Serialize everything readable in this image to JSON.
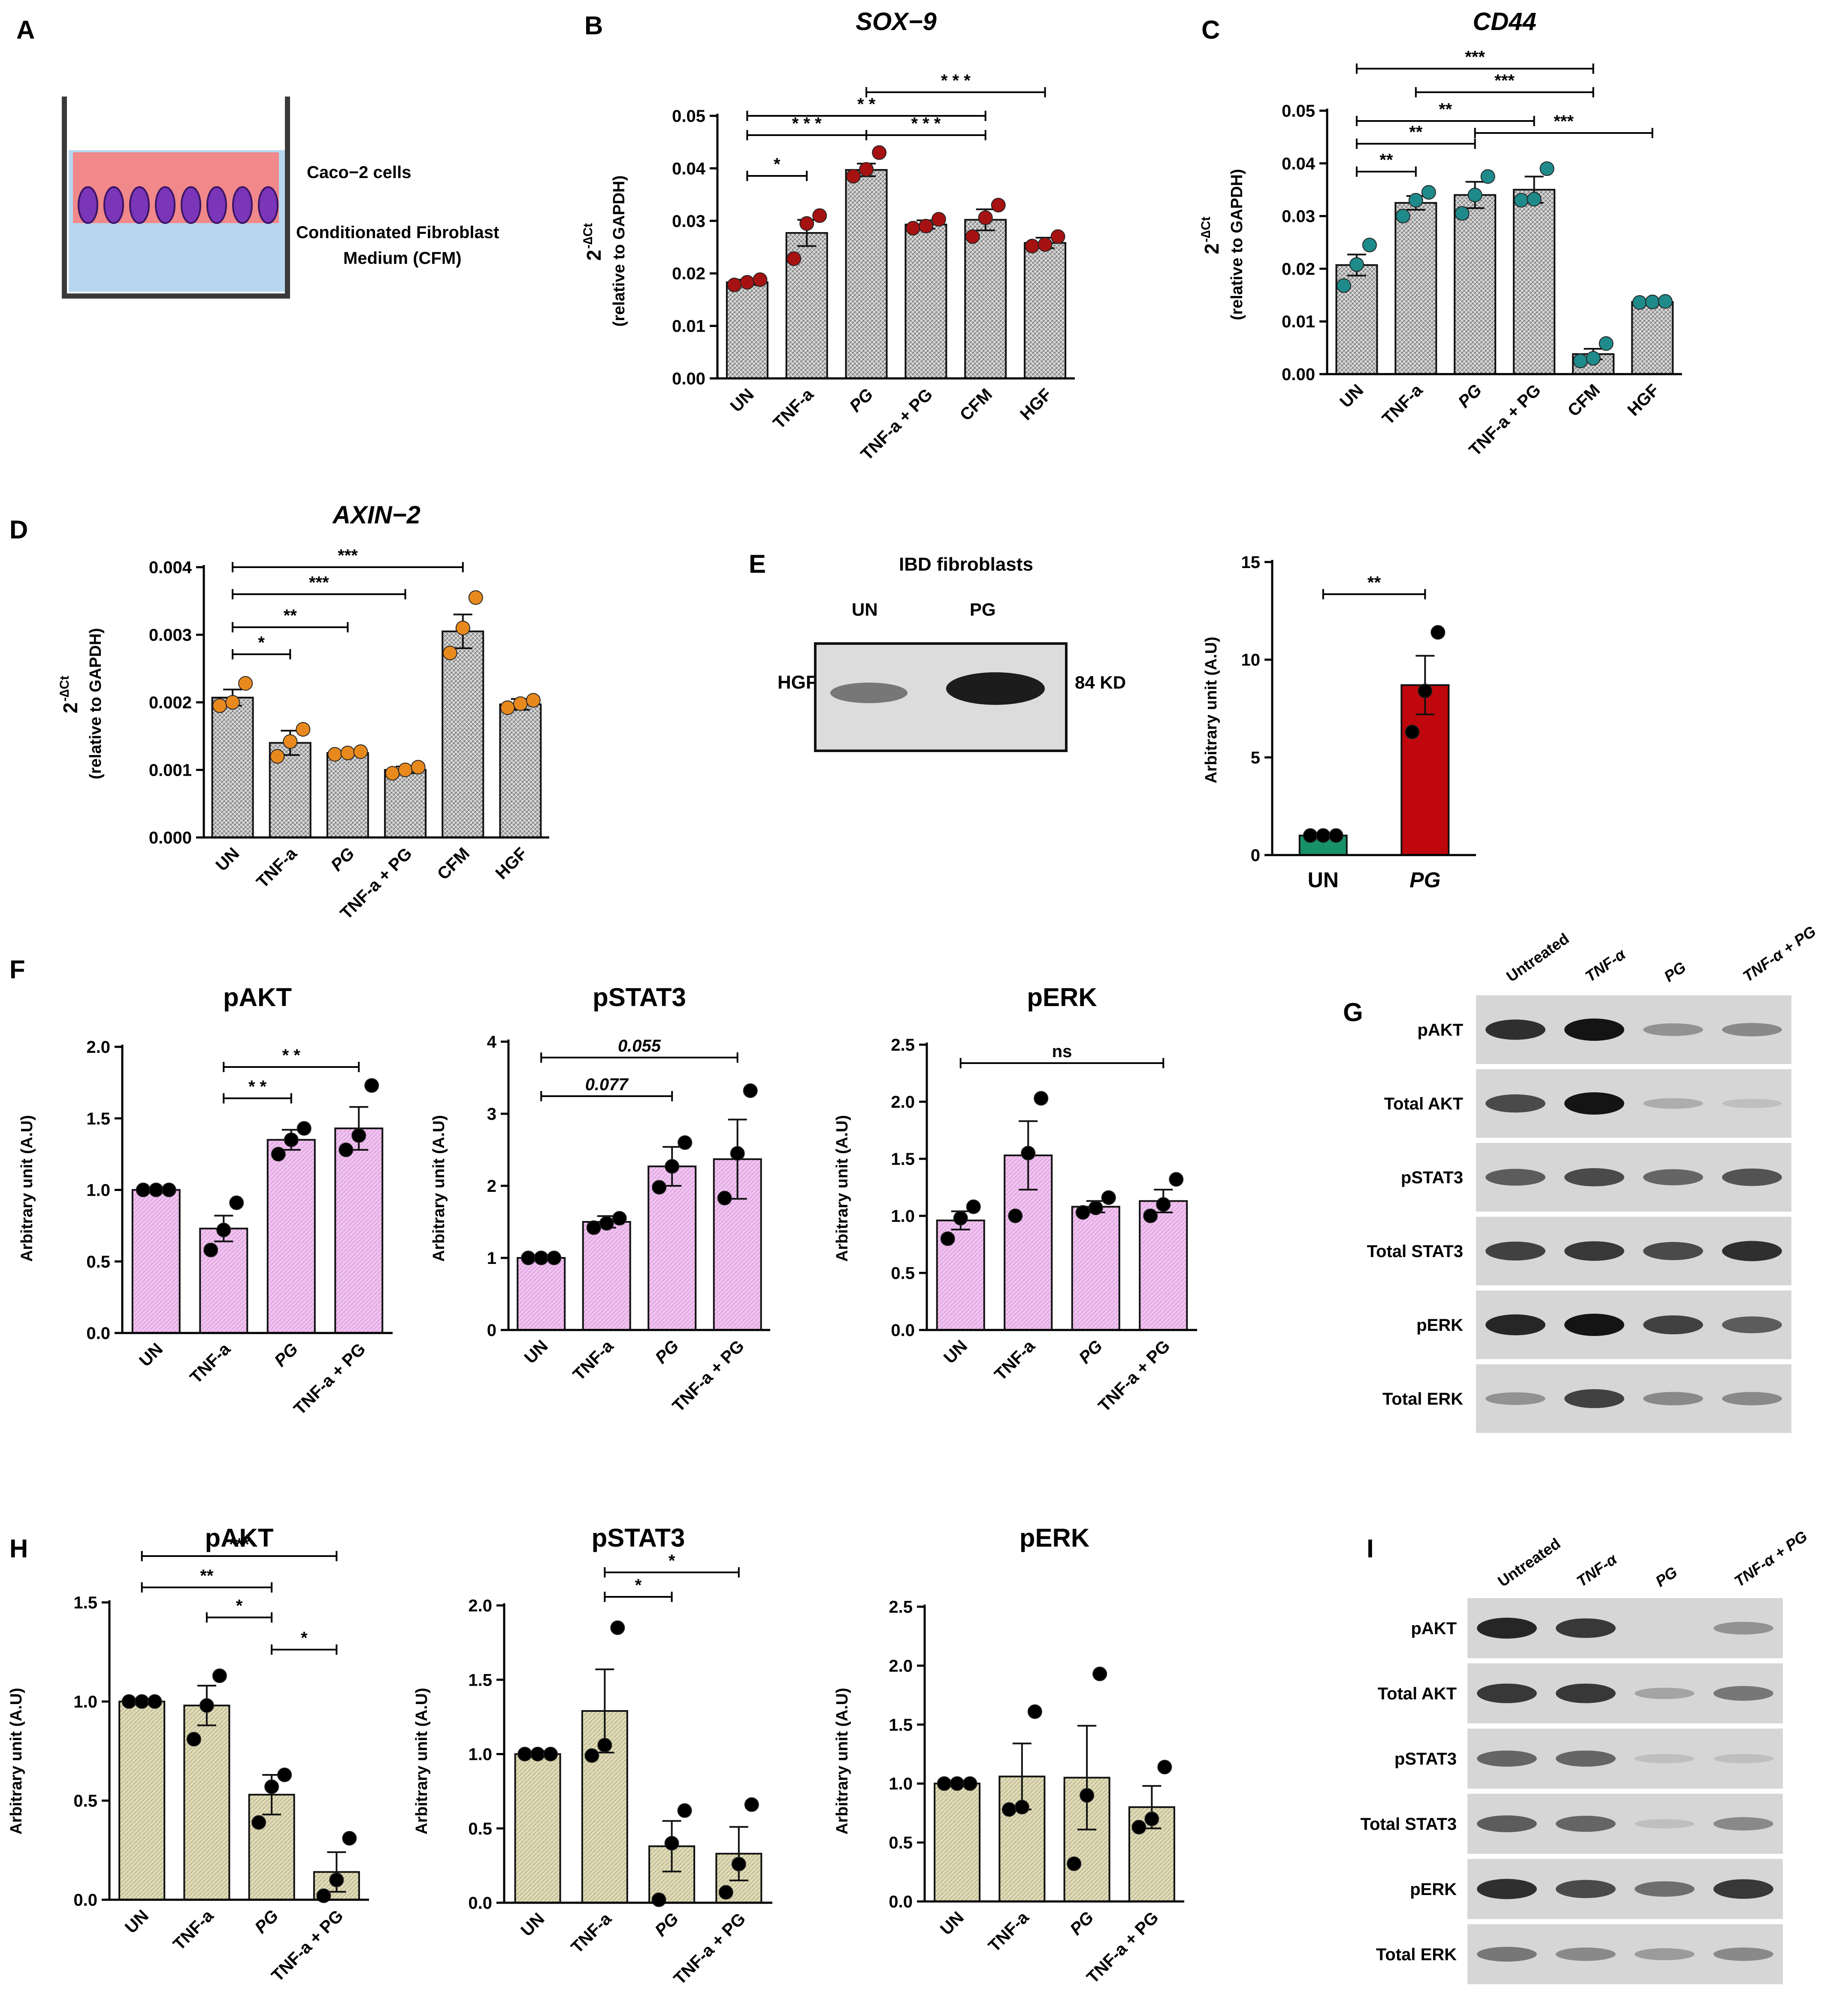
{
  "panel_labels": {
    "A": "A",
    "B": "B",
    "C": "C",
    "D": "D",
    "E": "E",
    "F": "F",
    "G": "G",
    "H": "H",
    "I": "I"
  },
  "panelA": {
    "cells_label": "Caco−2 cells",
    "medium_label_1": "Conditionated Fibroblast",
    "medium_label_2": "Medium  (CFM)"
  },
  "panelE": {
    "blot": {
      "title": "IBD  fibroblasts",
      "lanes": [
        "UN",
        "PG"
      ],
      "row": "HGF",
      "size": "84 KD"
    }
  },
  "chart_data": [
    {
      "id": "B",
      "type": "bar",
      "title": "SOX−9",
      "ylabel_main": "2",
      "ylabel_sup": "-∆Ct",
      "ylabel_sub": "(relative to GAPDH)",
      "categories": [
        "UN",
        "TNF-a",
        "PG",
        "TNF-a + PG",
        "CFM",
        "HGF"
      ],
      "values": [
        0.0183,
        0.0277,
        0.0397,
        0.0293,
        0.0302,
        0.0258
      ],
      "errors": [
        0.0005,
        0.0025,
        0.0012,
        0.0008,
        0.002,
        0.001
      ],
      "points": [
        [
          0.0178,
          0.0183,
          0.0188
        ],
        [
          0.0228,
          0.0295,
          0.031
        ],
        [
          0.0385,
          0.0398,
          0.043
        ],
        [
          0.0286,
          0.029,
          0.0303
        ],
        [
          0.027,
          0.0306,
          0.033
        ],
        [
          0.0252,
          0.0255,
          0.027
        ]
      ],
      "ylim": [
        0,
        0.05
      ],
      "yticks": [
        "0.00",
        "0.01",
        "0.02",
        "0.03",
        "0.04",
        "0.05"
      ],
      "fill": "gray",
      "dot": "#a61212",
      "sig": [
        {
          "from": 0,
          "to": 1,
          "label": "*"
        },
        {
          "from": 0,
          "to": 2,
          "label": "* * *"
        },
        {
          "from": 0,
          "to": 4,
          "label": "* *"
        },
        {
          "from": 2,
          "to": 4,
          "label": "* * *"
        },
        {
          "from": 2,
          "to": 5,
          "label": "* * *"
        }
      ]
    },
    {
      "id": "C",
      "type": "bar",
      "title": "CD44",
      "ylabel_main": "2",
      "ylabel_sup": "-∆Ct",
      "ylabel_sub": "(relative to GAPDH)",
      "categories": [
        "UN",
        "TNF-a",
        "PG",
        "TNF-a + PG",
        "CFM",
        "HGF"
      ],
      "values": [
        0.0207,
        0.0325,
        0.034,
        0.035,
        0.0038,
        0.0137
      ],
      "errors": [
        0.002,
        0.0013,
        0.0025,
        0.0025,
        0.001,
        0.0003
      ],
      "points": [
        [
          0.0168,
          0.0208,
          0.0245
        ],
        [
          0.03,
          0.033,
          0.0345
        ],
        [
          0.0305,
          0.034,
          0.0375
        ],
        [
          0.033,
          0.0332,
          0.039
        ],
        [
          0.0025,
          0.003,
          0.0058
        ],
        [
          0.0136,
          0.0137,
          0.0138
        ]
      ],
      "ylim": [
        0,
        0.05
      ],
      "yticks": [
        "0.00",
        "0.01",
        "0.02",
        "0.03",
        "0.04",
        "0.05"
      ],
      "fill": "gray",
      "dot": "#1f8a8a",
      "sig": [
        {
          "from": 0,
          "to": 1,
          "label": "**"
        },
        {
          "from": 0,
          "to": 2,
          "label": "**"
        },
        {
          "from": 0,
          "to": 3,
          "label": "**"
        },
        {
          "from": 2,
          "to": 5,
          "label": "***"
        },
        {
          "from": 1,
          "to": 4,
          "label": "***"
        },
        {
          "from": 0,
          "to": 4,
          "label": "***"
        }
      ]
    },
    {
      "id": "D",
      "type": "bar",
      "title": "AXIN−2",
      "ylabel_main": "2",
      "ylabel_sup": "-∆Ct",
      "ylabel_sub": "(relative to GAPDH)",
      "categories": [
        "UN",
        "TNF-a",
        "PG",
        "TNF-a + PG",
        "CFM",
        "HGF"
      ],
      "values": [
        0.00207,
        0.0014,
        0.00125,
        0.001,
        0.00305,
        0.00197
      ],
      "errors": [
        0.00012,
        0.00018,
        3e-05,
        5e-05,
        0.00025,
        8e-05
      ],
      "points": [
        [
          0.00195,
          0.002,
          0.00228
        ],
        [
          0.0012,
          0.00142,
          0.0016
        ],
        [
          0.00123,
          0.00125,
          0.00127
        ],
        [
          0.00095,
          0.001,
          0.00104
        ],
        [
          0.00273,
          0.0031,
          0.00355
        ],
        [
          0.00192,
          0.00198,
          0.00203
        ]
      ],
      "ylim": [
        0,
        0.004
      ],
      "yticks": [
        "0.000",
        "0.001",
        "0.002",
        "0.003",
        "0.004"
      ],
      "fill": "gray",
      "dot": "#e8891e",
      "sig": [
        {
          "from": 0,
          "to": 1,
          "label": "*"
        },
        {
          "from": 0,
          "to": 2,
          "label": "**"
        },
        {
          "from": 0,
          "to": 3,
          "label": "***"
        },
        {
          "from": 0,
          "to": 4,
          "label": "***"
        }
      ]
    },
    {
      "id": "E",
      "type": "bar",
      "title": "",
      "ylabel": "Arbitrary unit (A.U)",
      "categories": [
        "UN",
        "PG"
      ],
      "values": [
        1.0,
        8.7
      ],
      "errors": [
        0,
        1.5
      ],
      "points": [
        [
          1.0,
          1.0,
          1.0
        ],
        [
          6.3,
          8.4,
          11.4
        ]
      ],
      "ylim": [
        0,
        15
      ],
      "yticks": [
        "0",
        "5",
        "10",
        "15"
      ],
      "fills": [
        "#179267",
        "#c0070d"
      ],
      "dot": "#000000",
      "sig": [
        {
          "from": 0,
          "to": 1,
          "label": "**"
        }
      ]
    },
    {
      "id": "F1",
      "type": "bar",
      "title": "pAKT",
      "ylabel": "Arbitrary unit (A.U)",
      "categories": [
        "UN",
        "TNF-a",
        "PG",
        "TNF-a + PG"
      ],
      "values": [
        1.0,
        0.73,
        1.35,
        1.43
      ],
      "errors": [
        0,
        0.09,
        0.07,
        0.15
      ],
      "points": [
        [
          1.0,
          1.0,
          1.0
        ],
        [
          0.58,
          0.72,
          0.91
        ],
        [
          1.25,
          1.35,
          1.43
        ],
        [
          1.28,
          1.38,
          1.73
        ]
      ],
      "ylim": [
        0,
        2.0
      ],
      "yticks": [
        "0.0",
        "0.5",
        "1.0",
        "1.5",
        "2.0"
      ],
      "fill": "pink",
      "dot": "#000000",
      "sig": [
        {
          "from": 1,
          "to": 2,
          "label": "* *"
        },
        {
          "from": 1,
          "to": 3,
          "label": "* *"
        }
      ]
    },
    {
      "id": "F2",
      "type": "bar",
      "title": "pSTAT3",
      "ylabel": "Arbitrary unit (A.U)",
      "categories": [
        "UN",
        "TNF-a",
        "PG",
        "TNF-a + PG"
      ],
      "values": [
        1.0,
        1.5,
        2.27,
        2.37
      ],
      "errors": [
        0,
        0.08,
        0.27,
        0.55
      ],
      "points": [
        [
          1.0,
          1.0,
          1.0
        ],
        [
          1.42,
          1.48,
          1.55
        ],
        [
          1.98,
          2.27,
          2.6
        ],
        [
          1.83,
          2.45,
          3.32
        ]
      ],
      "ylim": [
        0,
        4
      ],
      "yticks": [
        "0",
        "1",
        "2",
        "3",
        "4"
      ],
      "fill": "pink",
      "dot": "#000000",
      "sig": [
        {
          "from": 0,
          "to": 2,
          "label": "0.077",
          "italic": true
        },
        {
          "from": 0,
          "to": 3,
          "label": "0.055",
          "italic": true
        }
      ]
    },
    {
      "id": "F3",
      "type": "bar",
      "title": "pERK",
      "ylabel": "Arbitrary unit (A.U)",
      "categories": [
        "UN",
        "TNF-a",
        "PG",
        "TNF-a + PG"
      ],
      "values": [
        0.96,
        1.53,
        1.08,
        1.13
      ],
      "errors": [
        0.08,
        0.3,
        0.05,
        0.1
      ],
      "points": [
        [
          0.8,
          0.98,
          1.08
        ],
        [
          1.0,
          1.55,
          2.03
        ],
        [
          1.03,
          1.07,
          1.16
        ],
        [
          1.0,
          1.1,
          1.32
        ]
      ],
      "ylim": [
        0,
        2.5
      ],
      "yticks": [
        "0.0",
        "0.5",
        "1.0",
        "1.5",
        "2.0",
        "2.5"
      ],
      "fill": "pink",
      "dot": "#000000",
      "sig": [
        {
          "from": 0,
          "to": 3,
          "label": "ns"
        }
      ]
    },
    {
      "id": "H1",
      "type": "bar",
      "title": "pAKT",
      "ylabel": "Arbitrary unit (A.U)",
      "categories": [
        "UN",
        "TNF-a",
        "PG",
        "TNF-a + PG"
      ],
      "values": [
        1.0,
        0.98,
        0.53,
        0.14
      ],
      "errors": [
        0,
        0.1,
        0.1,
        0.1
      ],
      "points": [
        [
          1.0,
          1.0,
          1.0
        ],
        [
          0.81,
          0.98,
          1.13
        ],
        [
          0.39,
          0.57,
          0.63
        ],
        [
          0.02,
          0.1,
          0.31
        ]
      ],
      "ylim": [
        0,
        1.5
      ],
      "yticks": [
        "0.0",
        "0.5",
        "1.0",
        "1.5"
      ],
      "fill": "olive",
      "dot": "#000000",
      "sig": [
        {
          "from": 0,
          "to": 2,
          "label": "**"
        },
        {
          "from": 0,
          "to": 3,
          "label": "***"
        },
        {
          "from": 1,
          "to": 2,
          "label": "*"
        },
        {
          "from": 2,
          "to": 3,
          "label": "*"
        }
      ]
    },
    {
      "id": "H2",
      "type": "bar",
      "title": "pSTAT3",
      "ylabel": "Arbitrary unit (A.U)",
      "categories": [
        "UN",
        "TNF-a",
        "PG",
        "TNF-a + PG"
      ],
      "values": [
        1.0,
        1.29,
        0.38,
        0.33
      ],
      "errors": [
        0,
        0.28,
        0.17,
        0.18
      ],
      "points": [
        [
          1.0,
          1.0,
          1.0
        ],
        [
          0.99,
          1.06,
          1.85
        ],
        [
          0.02,
          0.4,
          0.62
        ],
        [
          0.07,
          0.26,
          0.66
        ]
      ],
      "ylim": [
        0,
        2.0
      ],
      "yticks": [
        "0.0",
        "0.5",
        "1.0",
        "1.5",
        "2.0"
      ],
      "fill": "olive",
      "dot": "#000000",
      "sig": [
        {
          "from": 1,
          "to": 2,
          "label": "*"
        },
        {
          "from": 1,
          "to": 3,
          "label": "*"
        }
      ]
    },
    {
      "id": "H3",
      "type": "bar",
      "title": "pERK",
      "ylabel": "Arbitrary unit (A.U)",
      "categories": [
        "UN",
        "TNF-a",
        "PG",
        "TNF-a + PG"
      ],
      "values": [
        1.0,
        1.06,
        1.05,
        0.8
      ],
      "errors": [
        0,
        0.28,
        0.44,
        0.18
      ],
      "points": [
        [
          1.0,
          1.0,
          1.0
        ],
        [
          0.78,
          0.8,
          1.61
        ],
        [
          0.32,
          0.9,
          1.93
        ],
        [
          0.63,
          0.7,
          1.14
        ]
      ],
      "ylim": [
        0,
        2.5
      ],
      "yticks": [
        "0.0",
        "0.5",
        "1.0",
        "1.5",
        "2.0",
        "2.5"
      ],
      "fill": "olive",
      "dot": "#000000",
      "sig": []
    }
  ],
  "blots": {
    "G": {
      "lanes": [
        "Untreated",
        "TNF-α",
        "PG",
        "TNF-α + PG"
      ],
      "rows": [
        "pAKT",
        "Total AKT",
        "pSTAT3",
        "Total STAT3",
        "pERK",
        "Total ERK"
      ],
      "intensity": [
        [
          0.85,
          1.0,
          0.3,
          0.35
        ],
        [
          0.7,
          1.0,
          0.15,
          0.05
        ],
        [
          0.6,
          0.7,
          0.55,
          0.65
        ],
        [
          0.75,
          0.8,
          0.7,
          0.85
        ],
        [
          0.9,
          1.0,
          0.75,
          0.6
        ],
        [
          0.3,
          0.75,
          0.35,
          0.35
        ]
      ]
    },
    "I": {
      "lanes": [
        "Untreated",
        "TNF-α",
        "PG",
        "TNF-α + PG"
      ],
      "rows": [
        "pAKT",
        "Total AKT",
        "pSTAT3",
        "Total STAT3",
        "pERK",
        "Total ERK"
      ],
      "intensity": [
        [
          0.9,
          0.8,
          0.0,
          0.3
        ],
        [
          0.8,
          0.8,
          0.2,
          0.45
        ],
        [
          0.55,
          0.55,
          0.05,
          0.05
        ],
        [
          0.6,
          0.55,
          0.05,
          0.35
        ],
        [
          0.85,
          0.7,
          0.5,
          0.8
        ],
        [
          0.45,
          0.35,
          0.25,
          0.35
        ]
      ]
    }
  }
}
